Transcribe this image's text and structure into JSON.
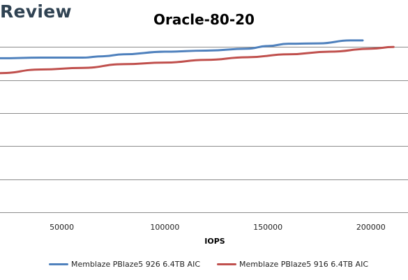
{
  "brand": {
    "text": "Review"
  },
  "colors": {
    "series1": "#4f81bd",
    "series2": "#c0504d",
    "grid": "#8c8c8c",
    "brand": "#2f4252"
  },
  "chart_data": {
    "type": "line",
    "title": "Oracle-80-20",
    "xlabel": "IOPS",
    "ylabel": "",
    "xlim": [
      20000,
      218000
    ],
    "ylim": [
      0,
      6
    ],
    "x_ticks": [
      50000,
      100000,
      150000,
      200000
    ],
    "x_tick_labels": [
      "50000",
      "100000",
      "150000",
      "200000"
    ],
    "y_ticks": [
      0,
      1,
      2,
      3,
      4,
      5
    ],
    "grid": true,
    "legend_position": "bottom",
    "series": [
      {
        "name": "Memblaze PBlaze5 926 6.4TB AIC",
        "x": [
          20000,
          40000,
          60000,
          70000,
          80000,
          100000,
          120000,
          140000,
          150000,
          160000,
          175000,
          190000,
          196000
        ],
        "values": [
          4.66,
          4.68,
          4.68,
          4.72,
          4.78,
          4.86,
          4.89,
          4.95,
          5.03,
          5.1,
          5.11,
          5.2,
          5.2
        ]
      },
      {
        "name": "Memblaze PBlaze5 916 6.4TB AIC",
        "x": [
          20000,
          40000,
          60000,
          80000,
          100000,
          120000,
          140000,
          160000,
          180000,
          200000,
          211000
        ],
        "values": [
          4.21,
          4.32,
          4.37,
          4.48,
          4.53,
          4.61,
          4.69,
          4.78,
          4.86,
          4.95,
          5.0
        ]
      }
    ]
  }
}
